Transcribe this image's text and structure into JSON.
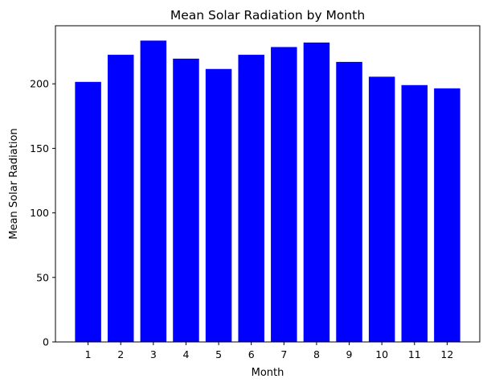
{
  "chart_data": {
    "type": "bar",
    "title": "Mean Solar Radiation by Month",
    "xlabel": "Month",
    "ylabel": "Mean Solar Radiation",
    "categories": [
      "1",
      "2",
      "3",
      "4",
      "5",
      "6",
      "7",
      "8",
      "9",
      "10",
      "11",
      "12"
    ],
    "values": [
      201.5,
      222.5,
      233.5,
      219.5,
      211.5,
      222.5,
      228.5,
      232.0,
      217.0,
      205.5,
      199.0,
      196.5
    ],
    "ylim": [
      0,
      245
    ],
    "yticks": [
      0,
      50,
      100,
      150,
      200
    ],
    "bar_color": "#0000ff",
    "grid": false,
    "legend": "none"
  }
}
